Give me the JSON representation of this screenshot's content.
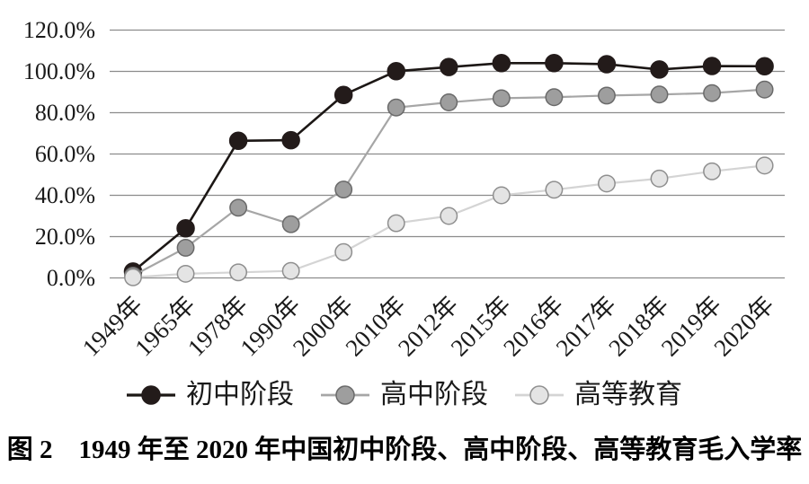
{
  "figure": {
    "caption": "图 2　1949 年至 2020 年中国初中阶段、高中阶段、高等教育毛入学率"
  },
  "chart_data": {
    "type": "line",
    "title": "",
    "xlabel": "",
    "ylabel": "",
    "categories": [
      "1949年",
      "1965年",
      "1978年",
      "1990年",
      "2000年",
      "2010年",
      "2012年",
      "2015年",
      "2016年",
      "2017年",
      "2018年",
      "2019年",
      "2020年"
    ],
    "series": [
      {
        "name": "初中阶段",
        "values": [
          3.1,
          24.0,
          66.4,
          66.7,
          88.6,
          100.1,
          102.1,
          104.0,
          104.0,
          103.5,
          100.9,
          102.6,
          102.5
        ],
        "line_color": "#1c1715",
        "marker_fill": "#231b1a",
        "marker_stroke": "#231b1a"
      },
      {
        "name": "高中阶段",
        "values": [
          1.1,
          14.6,
          34.0,
          26.0,
          42.8,
          82.5,
          85.0,
          87.0,
          87.5,
          88.3,
          88.8,
          89.5,
          91.2
        ],
        "line_color": "#a6a6a6",
        "marker_fill": "#9e9e9e",
        "marker_stroke": "#6a6a6a"
      },
      {
        "name": "高等教育",
        "values": [
          0.3,
          2.0,
          2.7,
          3.4,
          12.5,
          26.5,
          30.0,
          40.0,
          42.7,
          45.7,
          48.1,
          51.6,
          54.4
        ],
        "line_color": "#d4d4d4",
        "marker_fill": "#e4e4e4",
        "marker_stroke": "#8f8f8f"
      }
    ],
    "y_ticks": [
      "120.0%",
      "100.0%",
      "80.0%",
      "60.0%",
      "40.0%",
      "20.0%",
      "0.0%"
    ],
    "ylim": [
      0,
      120
    ],
    "grid": "horizontal",
    "gridline_color": "#8c8c8c",
    "legend_position": "bottom"
  }
}
